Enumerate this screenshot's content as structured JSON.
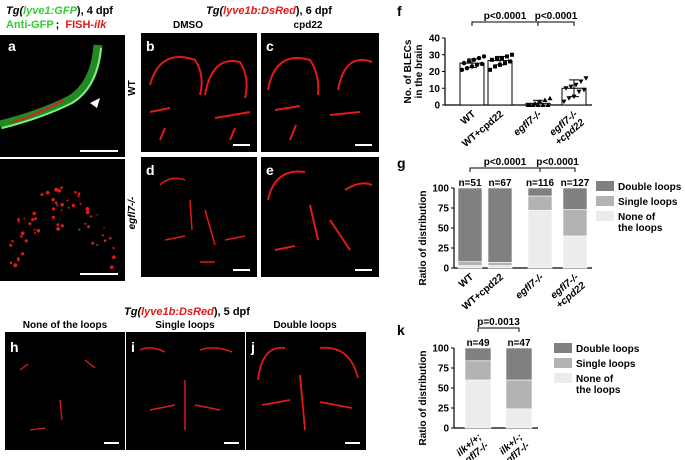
{
  "panel_a": {
    "letter": "a",
    "title_tg": "Tg(",
    "title_gene": "lyve1:GFP",
    "title_close": "), 4 dpf",
    "stain_green": "Anti-GFP",
    "stain_sep": ";",
    "stain_red_prefix": "FISH-",
    "stain_red_gene": "ilk"
  },
  "panels_bcde": {
    "title_tg": "Tg(",
    "title_gene": "lyve1b:DsRed",
    "title_close": "), 6 dpf",
    "col_dmso": "DMSO",
    "col_cpd22": "cpd22",
    "row_wt": "WT",
    "row_mut": "egfl7-/-",
    "letters": [
      "b",
      "c",
      "d",
      "e"
    ]
  },
  "panels_hij": {
    "title_tg": "Tg(",
    "title_gene": "lyve1b:DsRed",
    "title_close": "), 5 dpf",
    "labels": [
      "None of the loops",
      "Single loops",
      "Double loops"
    ],
    "letters": [
      "h",
      "i",
      "j"
    ]
  },
  "panel_f": {
    "letter": "f"
  },
  "panel_g": {
    "letter": "g"
  },
  "panel_k": {
    "letter": "k"
  },
  "colors": {
    "green": "#33cc33",
    "red": "#e01919",
    "double": "#808080",
    "single": "#b3b3b3",
    "none": "#ececec"
  },
  "chart_data": [
    {
      "id": "f",
      "type": "scatter",
      "ylabel": "No. of BLECs in the brain",
      "ylim": [
        0,
        40
      ],
      "yticks": [
        0,
        10,
        20,
        30,
        40
      ],
      "categories": [
        "WT",
        "WT+cpd22",
        "egfl7-/-",
        "egfl7-/-+cpd22"
      ],
      "means": [
        25,
        26.5,
        1,
        10
      ],
      "sd": [
        2.5,
        2.5,
        1.8,
        5
      ],
      "points": [
        [
          21,
          22,
          23,
          24,
          24.5,
          25,
          26,
          27,
          28,
          29
        ],
        [
          21,
          23,
          24,
          25,
          26,
          27,
          27.5,
          28,
          29,
          30
        ],
        [
          0,
          0,
          0,
          0,
          0,
          0,
          1,
          2,
          3,
          4
        ],
        [
          2,
          4,
          5,
          8,
          9,
          10,
          11,
          12,
          14,
          16
        ]
      ],
      "markers": [
        "circle",
        "square",
        "triangle-up",
        "triangle-down"
      ],
      "comparisons": [
        {
          "from": 0,
          "to": 2,
          "label": "p<0.0001"
        },
        {
          "from": 2,
          "to": 3,
          "label": "p<0.0001"
        }
      ]
    },
    {
      "id": "g",
      "type": "bar",
      "stacked": true,
      "ylabel": "Ratio of distribution",
      "ylim": [
        0,
        100
      ],
      "yticks": [
        0,
        25,
        50,
        75,
        100
      ],
      "categories": [
        "WT",
        "WT+cpd22",
        "egfl7-/-",
        "egfl7-/-+cpd22"
      ],
      "n_labels": [
        "n=51",
        "n=67",
        "n=116",
        "n=127"
      ],
      "series": [
        {
          "name": "None of the loops",
          "values": [
            3,
            3,
            72,
            40
          ]
        },
        {
          "name": "Single loops",
          "values": [
            5,
            4,
            18,
            33
          ]
        },
        {
          "name": "Double loops",
          "values": [
            92,
            93,
            10,
            27
          ]
        }
      ],
      "legend": [
        "Double loops",
        "Single loops",
        "None of the loops"
      ],
      "comparisons": [
        {
          "from": 0,
          "to": 2,
          "label": "p<0.0001"
        },
        {
          "from": 2,
          "to": 3,
          "label": "p<0.0001"
        }
      ]
    },
    {
      "id": "k",
      "type": "bar",
      "stacked": true,
      "ylabel": "Ratio of distribution",
      "ylim": [
        0,
        100
      ],
      "yticks": [
        0,
        25,
        50,
        75,
        100
      ],
      "categories": [
        "ilk+/+; egfl7-/-",
        "ilk+/-; egfl7-/-"
      ],
      "n_labels": [
        "n=49",
        "n=47"
      ],
      "series": [
        {
          "name": "None of the loops",
          "values": [
            60,
            24
          ]
        },
        {
          "name": "Single loops",
          "values": [
            24,
            36
          ]
        },
        {
          "name": "Double loops",
          "values": [
            16,
            40
          ]
        }
      ],
      "legend": [
        "Double loops",
        "Single loops",
        "None of the loops"
      ],
      "comparisons": [
        {
          "from": 0,
          "to": 1,
          "label": "p=0.0013"
        }
      ]
    }
  ]
}
